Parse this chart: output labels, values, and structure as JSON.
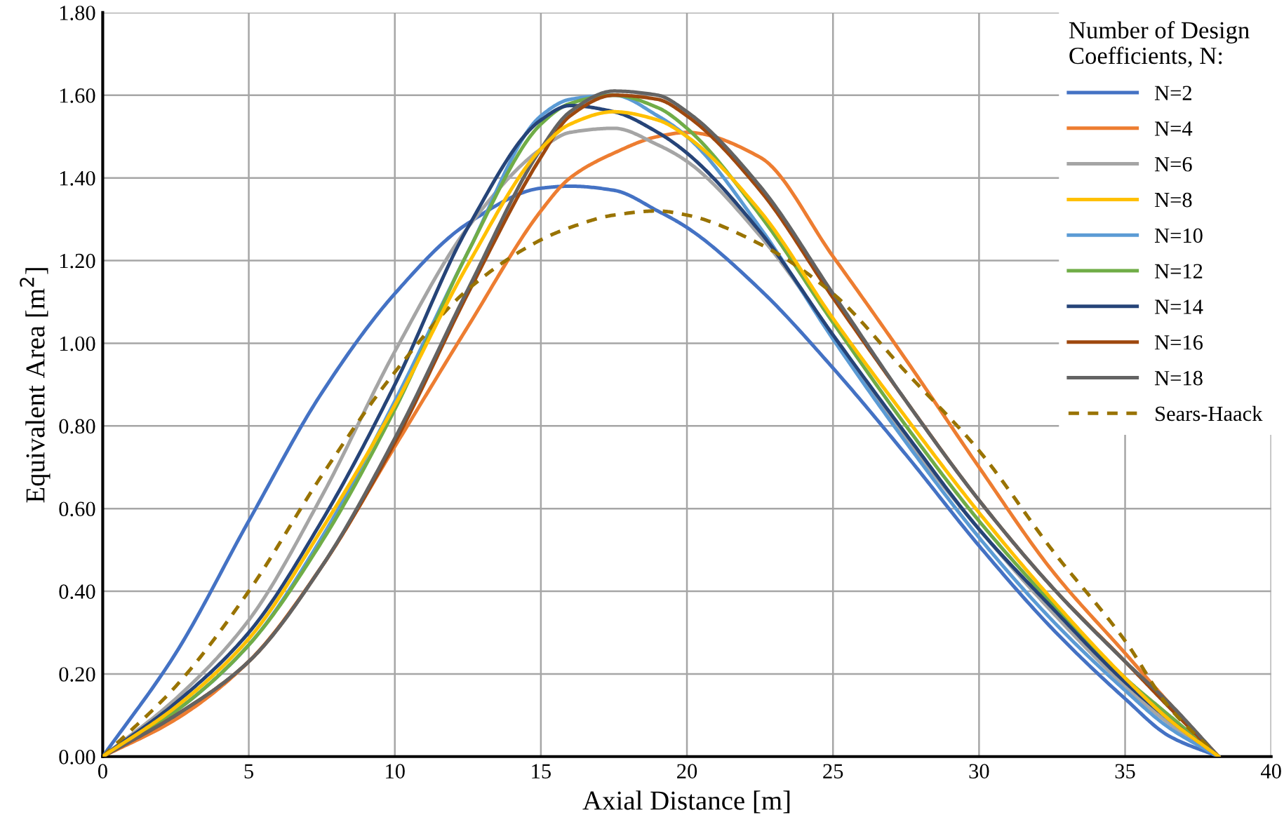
{
  "chart_data": {
    "type": "line",
    "xlabel": "Axial Distance [m]",
    "ylabel": "Equivalent Area [m$^{2}$]",
    "legend_title": "Number of Design\nCoefficients, N:",
    "x": [
      0,
      2.5,
      5,
      7.5,
      10,
      12.5,
      15,
      16,
      17.5,
      19,
      20,
      22.5,
      25,
      27.5,
      30,
      32.5,
      35,
      36.5,
      38.2
    ],
    "series": [
      {
        "name": "N=2",
        "color": "#4472c4",
        "values": [
          0,
          0.25,
          0.57,
          0.88,
          1.12,
          1.29,
          1.375,
          1.38,
          1.37,
          1.32,
          1.28,
          1.13,
          0.94,
          0.73,
          0.51,
          0.31,
          0.14,
          0.05,
          0
        ]
      },
      {
        "name": "N=4",
        "color": "#ed7d31",
        "values": [
          0,
          0.09,
          0.23,
          0.46,
          0.75,
          1.04,
          1.32,
          1.4,
          1.46,
          1.5,
          1.51,
          1.45,
          1.21,
          0.96,
          0.7,
          0.45,
          0.25,
          0.13,
          0
        ]
      },
      {
        "name": "N=6",
        "color": "#a5a5a5",
        "values": [
          0,
          0.14,
          0.33,
          0.63,
          0.98,
          1.28,
          1.47,
          1.51,
          1.52,
          1.48,
          1.44,
          1.26,
          1.02,
          0.77,
          0.55,
          0.35,
          0.17,
          0.08,
          0
        ]
      },
      {
        "name": "N=8",
        "color": "#ffc000",
        "values": [
          0,
          0.12,
          0.285,
          0.55,
          0.85,
          1.19,
          1.47,
          1.53,
          1.56,
          1.54,
          1.5,
          1.32,
          1.06,
          0.82,
          0.59,
          0.38,
          0.19,
          0.09,
          0
        ]
      },
      {
        "name": "N=10",
        "color": "#5b9bd5",
        "values": [
          0,
          0.11,
          0.27,
          0.53,
          0.86,
          1.22,
          1.55,
          1.59,
          1.6,
          1.55,
          1.5,
          1.28,
          1.01,
          0.76,
          0.53,
          0.33,
          0.16,
          0.07,
          0
        ]
      },
      {
        "name": "N=12",
        "color": "#70ad47",
        "values": [
          0,
          0.11,
          0.27,
          0.52,
          0.84,
          1.22,
          1.53,
          1.58,
          1.6,
          1.57,
          1.52,
          1.31,
          1.05,
          0.8,
          0.57,
          0.37,
          0.19,
          0.1,
          0
        ]
      },
      {
        "name": "N=14",
        "color": "#264478",
        "values": [
          0,
          0.13,
          0.3,
          0.57,
          0.9,
          1.28,
          1.54,
          1.575,
          1.56,
          1.51,
          1.46,
          1.27,
          1.02,
          0.78,
          0.55,
          0.36,
          0.18,
          0.09,
          0
        ]
      },
      {
        "name": "N=16",
        "color": "#9e480e",
        "values": [
          0,
          0.1,
          0.23,
          0.46,
          0.76,
          1.12,
          1.45,
          1.55,
          1.6,
          1.59,
          1.55,
          1.37,
          1.11,
          0.86,
          0.62,
          0.41,
          0.23,
          0.12,
          0
        ]
      },
      {
        "name": "N=18",
        "color": "#636363",
        "values": [
          0,
          0.1,
          0.23,
          0.46,
          0.77,
          1.13,
          1.47,
          1.56,
          1.61,
          1.6,
          1.56,
          1.38,
          1.12,
          0.86,
          0.62,
          0.41,
          0.23,
          0.13,
          0
        ]
      },
      {
        "name": "Sears-Haack",
        "color": "#997300",
        "line_style": "dashed",
        "values": [
          0,
          0.17,
          0.4,
          0.68,
          0.93,
          1.13,
          1.25,
          1.28,
          1.31,
          1.32,
          1.31,
          1.24,
          1.12,
          0.93,
          0.74,
          0.5,
          0.28,
          0.12,
          0
        ]
      }
    ],
    "xlim": [
      0,
      40
    ],
    "xticks": [
      0,
      5,
      10,
      15,
      20,
      25,
      30,
      35,
      40
    ],
    "ylim": [
      0,
      1.8
    ],
    "yticks": [
      {
        "value": 0,
        "label": "0.00"
      },
      {
        "value": 0.2,
        "label": "0.20"
      },
      {
        "value": 0.4,
        "label": "0.40"
      },
      {
        "value": 0.6,
        "label": "0.60"
      },
      {
        "value": 0.8,
        "label": "0.80"
      },
      {
        "value": 1.0,
        "label": "1.00"
      },
      {
        "value": 1.2,
        "label": "1.20"
      },
      {
        "value": 1.4,
        "label": "1.40"
      },
      {
        "value": 1.6,
        "label": "1.60"
      },
      {
        "value": 1.8,
        "label": "1.80"
      }
    ],
    "grid": true,
    "legend": "top right"
  }
}
